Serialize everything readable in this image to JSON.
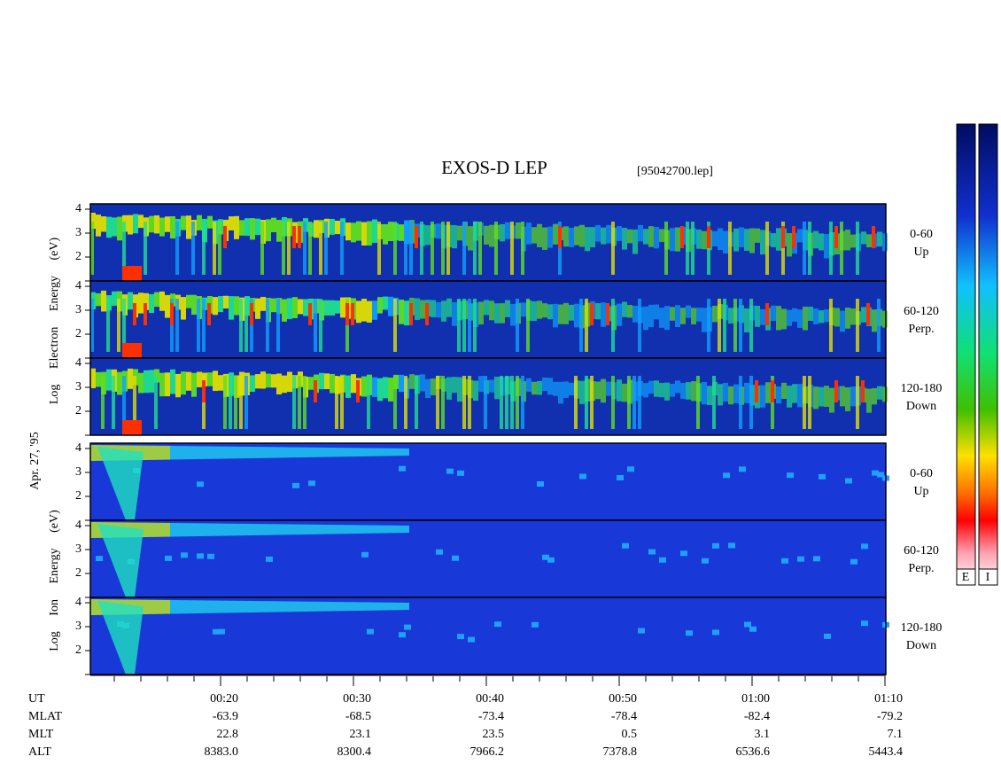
{
  "title": "EXOS-D LEP",
  "file": "[95042700.lep]",
  "date": "Apr. 27, '95",
  "electron_ylabel": "Log  Electron  Energy  (eV)",
  "ion_ylabel": "Log  Ion  Energy  (eV)",
  "yticks": [
    "2",
    "3",
    "4"
  ],
  "panels": [
    {
      "angle": "0-60",
      "dir": "Up"
    },
    {
      "angle": "60-120",
      "dir": "Perp."
    },
    {
      "angle": "120-180",
      "dir": "Down"
    },
    {
      "angle": "0-60",
      "dir": "Up"
    },
    {
      "angle": "60-120",
      "dir": "Perp."
    },
    {
      "angle": "120-180",
      "dir": "Down"
    }
  ],
  "time_axis": [
    {
      "name": "UT",
      "values": [
        "00:20",
        "00:30",
        "00:40",
        "00:50",
        "01:00",
        "01:10"
      ]
    },
    {
      "name": "MLAT",
      "values": [
        "-63.9",
        "-68.5",
        "-73.4",
        "-78.4",
        "-82.4",
        "-79.2"
      ]
    },
    {
      "name": "MLT",
      "values": [
        "22.8",
        "23.1",
        "23.5",
        "0.5",
        "3.1",
        "7.1"
      ]
    },
    {
      "name": "ALT",
      "values": [
        "8383.0",
        "8300.4",
        "7966.2",
        "7378.8",
        "6536.6",
        "5443.4"
      ]
    }
  ],
  "colorbars": [
    "E",
    "I"
  ]
}
